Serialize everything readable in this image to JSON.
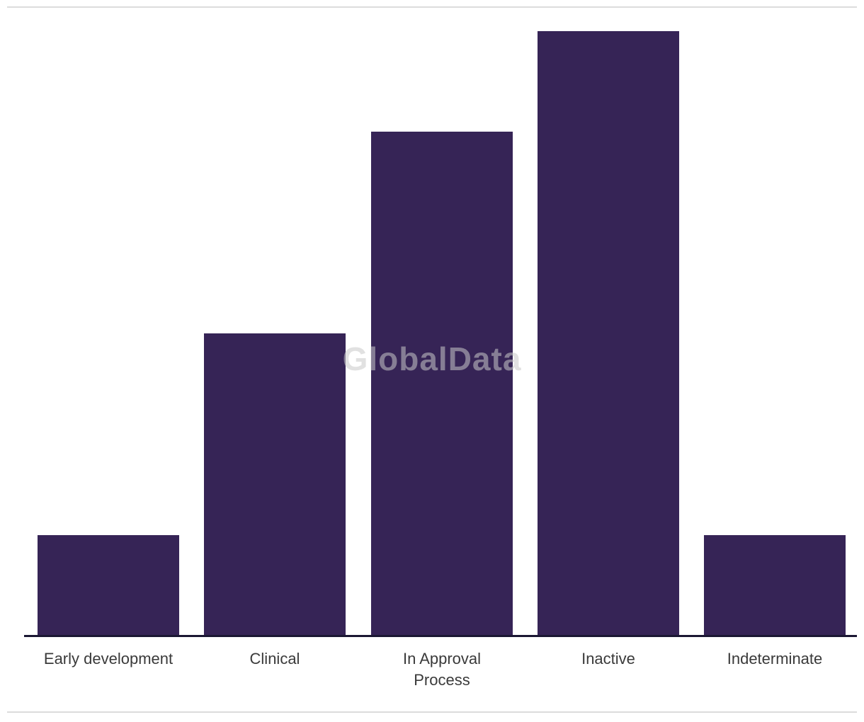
{
  "watermark": "GlobalData",
  "colors": {
    "bar": "#362456",
    "axis_line": "#1b1733",
    "divider_rule": "#dcdcdc",
    "label_text": "#3a3a3a",
    "watermark_text": "#c9c9c9"
  },
  "chart_data": {
    "type": "bar",
    "categories": [
      "Early development",
      "Clinical",
      "In Approval\nProcess",
      "Inactive",
      "Indeterminate"
    ],
    "values": [
      1,
      3,
      5,
      6,
      1
    ],
    "title": "",
    "xlabel": "",
    "ylabel": "",
    "ylim": [
      0,
      6
    ],
    "grid": false,
    "legend": false,
    "y_axis_visible": false,
    "bar_color": "#362456",
    "watermark": "GlobalData"
  }
}
